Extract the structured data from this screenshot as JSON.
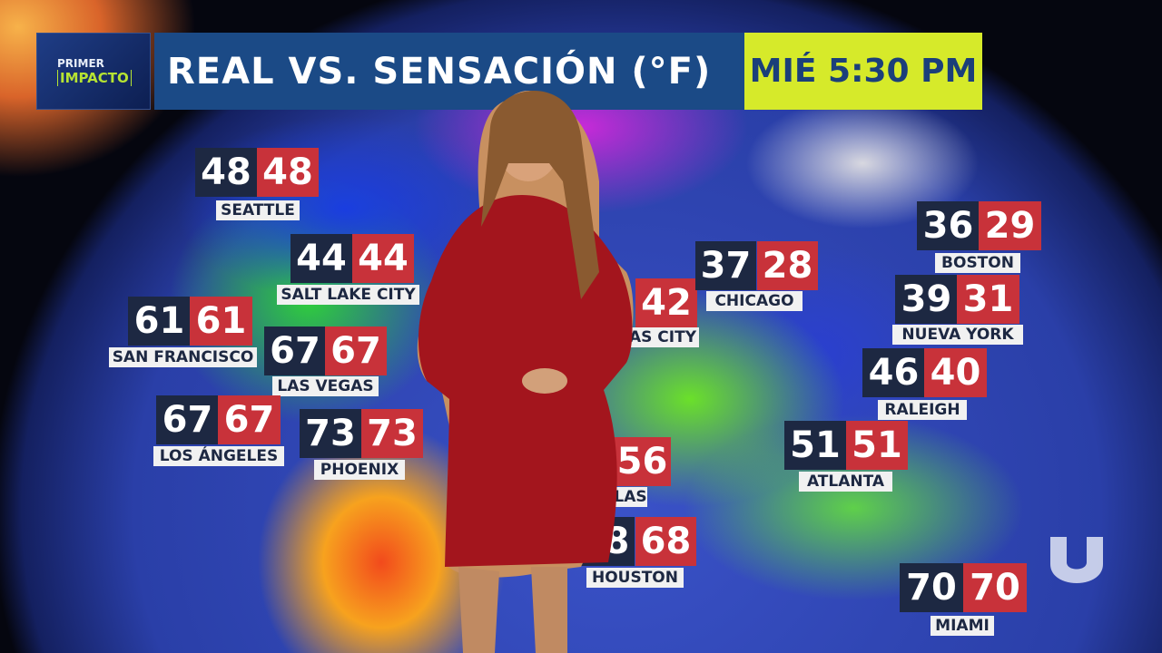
{
  "header": {
    "logo_line1": "PRIMER",
    "logo_line2": "IMPACTO",
    "title": "REAL VS. SENSACIÓN (°F)",
    "time": "MIÉ 5:30 PM"
  },
  "colors": {
    "real_box": "#1d2842",
    "feel_box": "#c8323a",
    "title_bar": "#1b4a86",
    "time_box": "#d6ea2a"
  },
  "cities": [
    {
      "name": "SEATTLE",
      "real": "48",
      "feel": "48"
    },
    {
      "name": "SALT LAKE CITY",
      "real": "44",
      "feel": "44"
    },
    {
      "name": "SAN FRANCISCO",
      "real": "61",
      "feel": "61"
    },
    {
      "name": "LAS VEGAS",
      "real": "67",
      "feel": "67"
    },
    {
      "name": "LOS ÁNGELES",
      "real": "67",
      "feel": "67"
    },
    {
      "name": "PHOENIX",
      "real": "73",
      "feel": "73"
    },
    {
      "name": "AS CITY",
      "feel": "42"
    },
    {
      "name": "CHICAGO",
      "real": "37",
      "feel": "28"
    },
    {
      "name": "BOSTON",
      "real": "36",
      "feel": "29"
    },
    {
      "name": "NUEVA YORK",
      "real": "39",
      "feel": "31"
    },
    {
      "name": "RALEIGH",
      "real": "46",
      "feel": "40"
    },
    {
      "name": "ATLANTA",
      "real": "51",
      "feel": "51"
    },
    {
      "name": "LAS",
      "feel": "56"
    },
    {
      "name": "HOUSTON",
      "real": "68",
      "feel": "68"
    },
    {
      "name": "MIAMI",
      "real": "70",
      "feel": "70"
    }
  ],
  "network_logo": "univision-logo"
}
